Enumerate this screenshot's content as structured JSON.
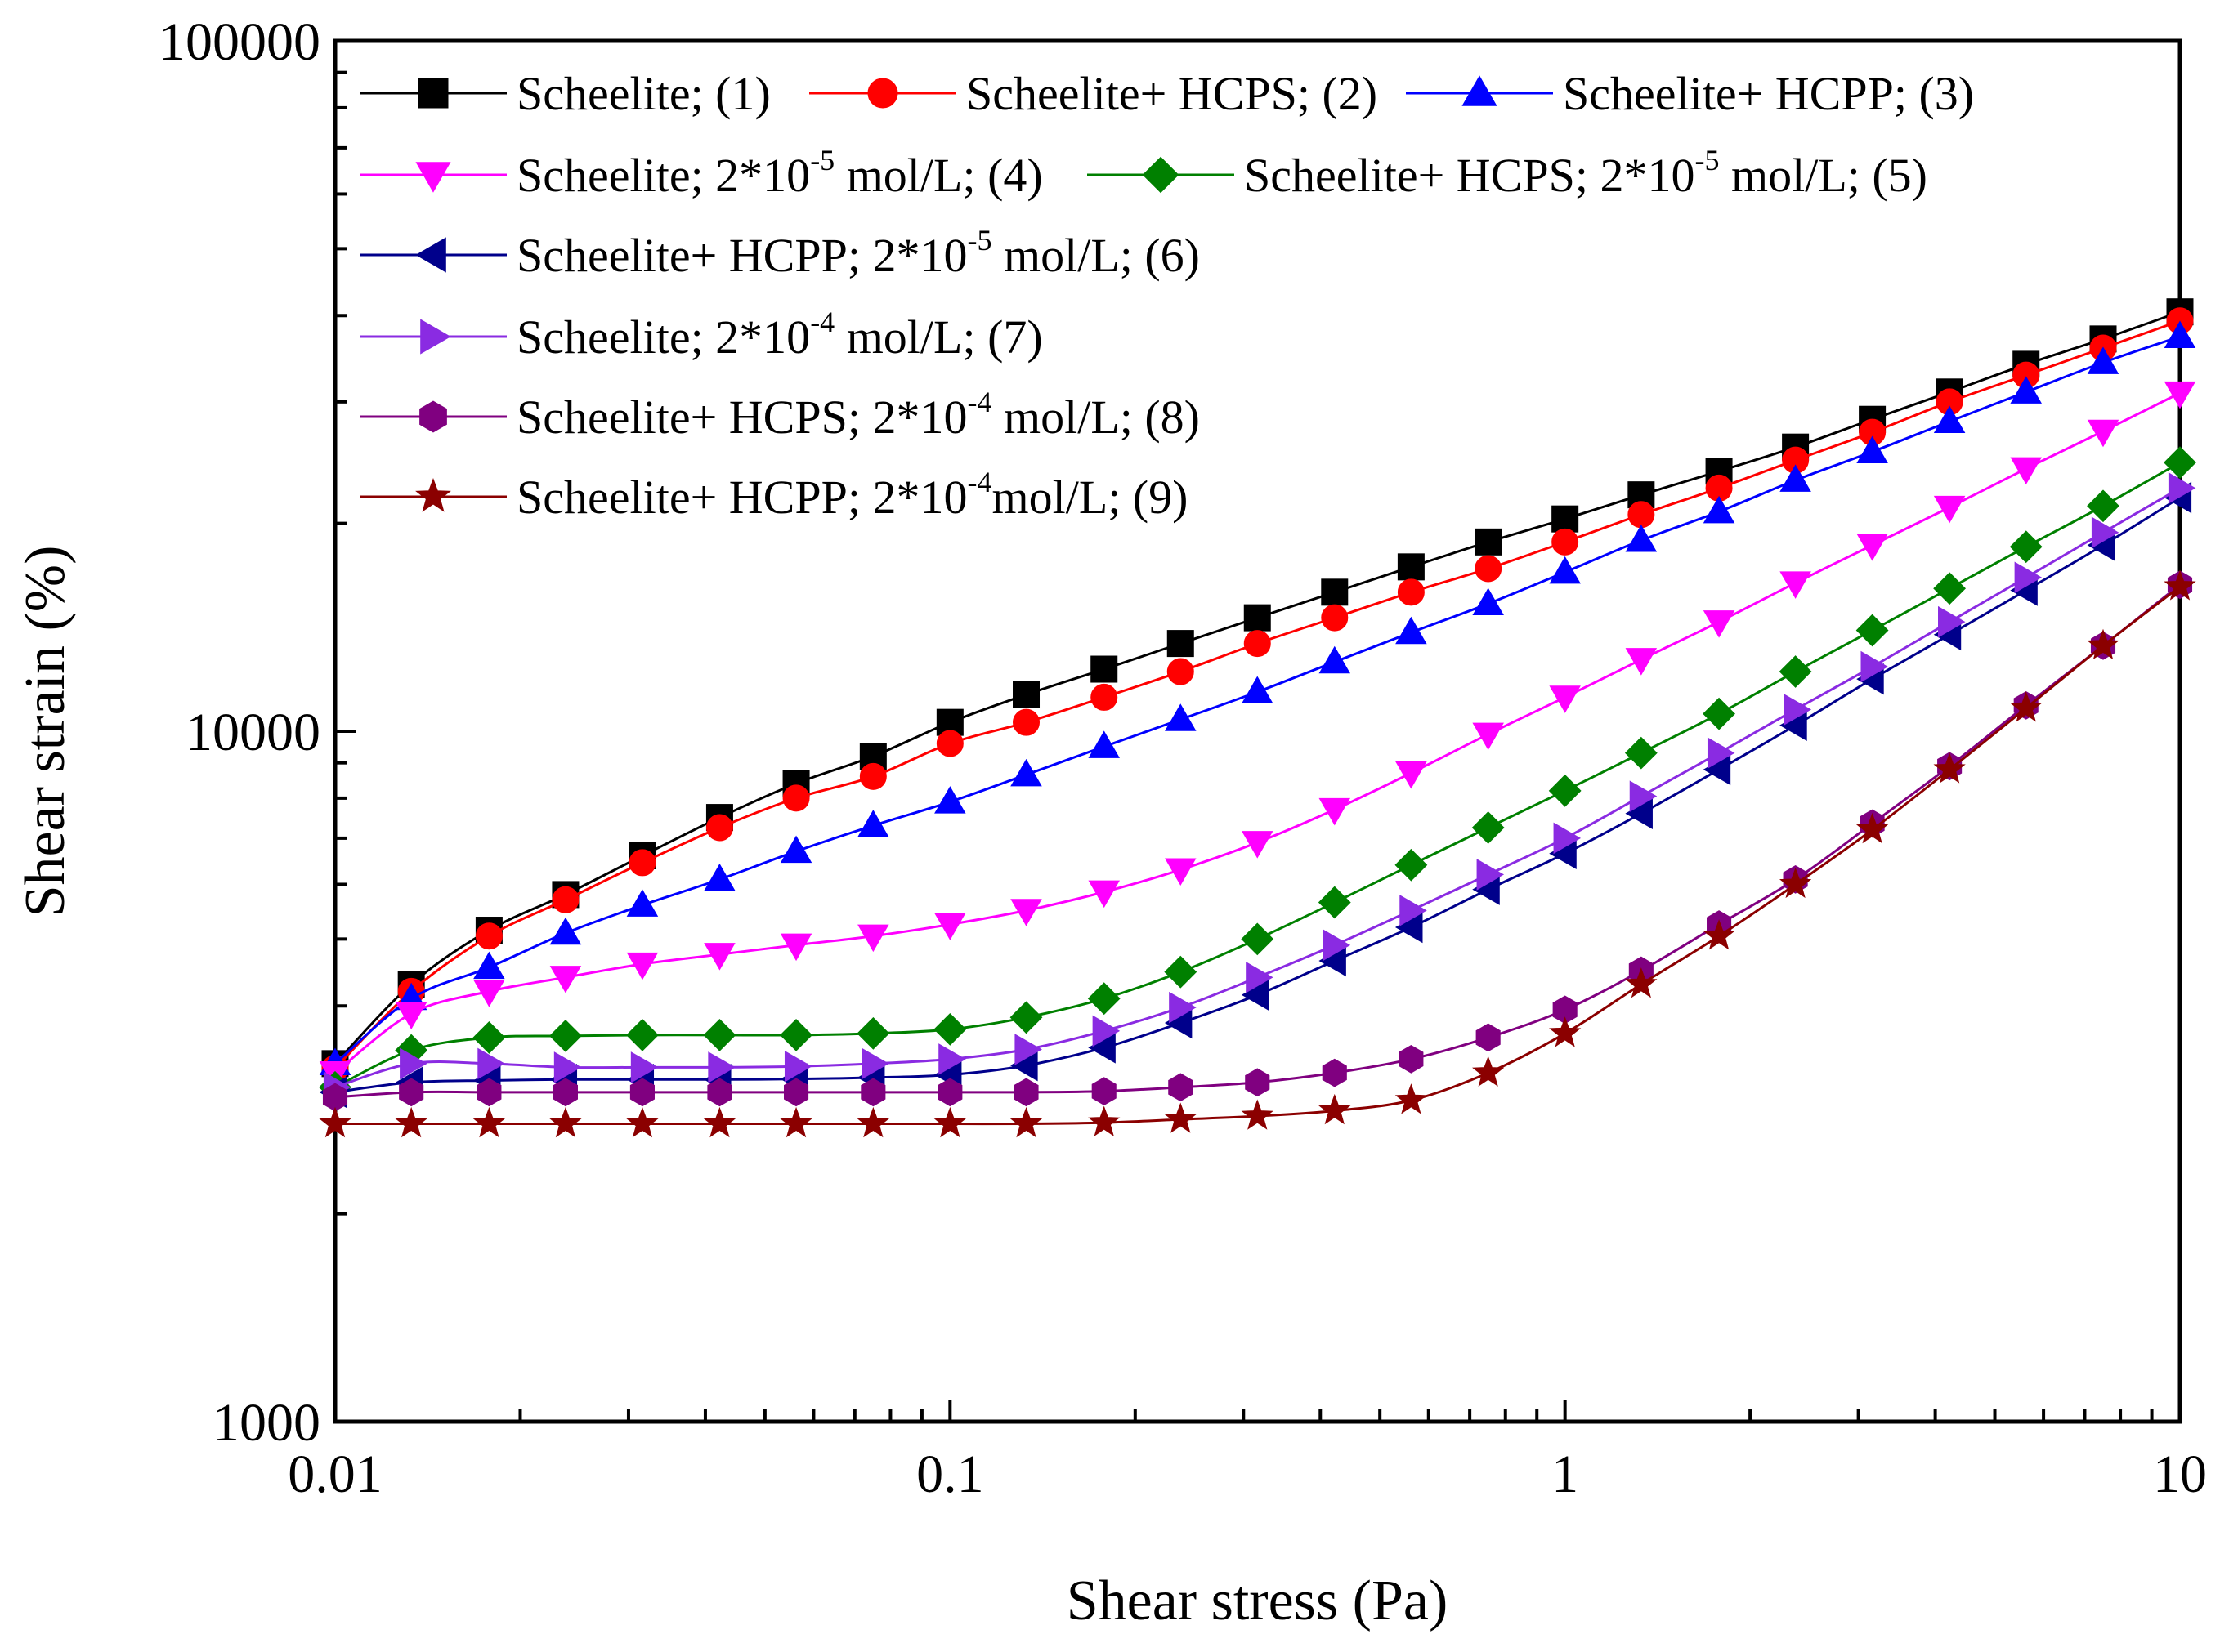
{
  "chart_data": {
    "type": "line",
    "xscale": "log",
    "yscale": "log",
    "xlabel": "Shear stress (Pa)",
    "ylabel": "Shear strain  (%)",
    "xlim": [
      0.01,
      10
    ],
    "ylim": [
      1000,
      100000
    ],
    "xticks": [
      "0.01",
      "0.1",
      "1",
      "10"
    ],
    "yticks": [
      "1000",
      "10000",
      "100000"
    ],
    "x": [
      0.01,
      0.0133,
      0.0178,
      0.0237,
      0.0316,
      0.0422,
      0.0562,
      0.075,
      0.1,
      0.133,
      0.178,
      0.237,
      0.316,
      0.422,
      0.562,
      0.75,
      1.0,
      1.33,
      1.78,
      2.37,
      3.16,
      4.22,
      5.62,
      7.5,
      10.0
    ],
    "series": [
      {
        "name": "Scheelite",
        "label_pre": "Scheelite; (1)",
        "label_sup": "",
        "label_post": "",
        "color": "#000000",
        "marker": "square",
        "values": [
          3300,
          4300,
          5150,
          5800,
          6600,
          7500,
          8400,
          9200,
          10300,
          11300,
          12300,
          13400,
          14600,
          15900,
          17300,
          18800,
          20300,
          22000,
          23800,
          25800,
          28300,
          31000,
          34000,
          37000,
          40500
        ]
      },
      {
        "name": "Scheelite+ HCPS",
        "label_pre": "Scheelite+ HCPS; (2)",
        "label_sup": "",
        "label_post": "",
        "color": "#ff0000",
        "marker": "circle",
        "values": [
          3250,
          4200,
          5050,
          5700,
          6450,
          7250,
          8000,
          8600,
          9600,
          10300,
          11200,
          12200,
          13400,
          14600,
          15900,
          17200,
          18800,
          20600,
          22500,
          24700,
          27100,
          30000,
          32800,
          35900,
          39300
        ]
      },
      {
        "name": "Scheelite+ HCPP",
        "label_pre": "Scheelite+ HCPP; (3)",
        "label_sup": "",
        "label_post": "",
        "color": "#0000ff",
        "marker": "triangle-up",
        "values": [
          3300,
          4100,
          4550,
          5100,
          5600,
          6100,
          6700,
          7300,
          7900,
          8650,
          9500,
          10400,
          11400,
          12600,
          13900,
          15300,
          17000,
          18900,
          20800,
          23100,
          25400,
          28100,
          31000,
          34200,
          37300
        ]
      },
      {
        "name": "Scheelite; 2*10-5 mol/L",
        "label_pre": "Scheelite; 2*10",
        "label_sup": "-5",
        "label_post": " mol/L; (4)",
        "color": "#ff00ff",
        "marker": "triangle-down",
        "values": [
          3200,
          3900,
          4200,
          4400,
          4600,
          4750,
          4900,
          5050,
          5250,
          5500,
          5850,
          6300,
          6900,
          7700,
          8700,
          9900,
          11200,
          12700,
          14400,
          16400,
          18600,
          21100,
          24000,
          27200,
          30900
        ]
      },
      {
        "name": "Scheelite+ HCPS; 2*10-5 mol/L",
        "label_pre": "Scheelite+ HCPS; 2*10",
        "label_sup": "-5",
        "label_post": " mol/L; (5)",
        "color": "#008000",
        "marker": "diamond",
        "values": [
          3050,
          3450,
          3600,
          3620,
          3630,
          3630,
          3630,
          3650,
          3700,
          3850,
          4100,
          4480,
          5000,
          5650,
          6400,
          7250,
          8200,
          9300,
          10600,
          12200,
          14000,
          16100,
          18500,
          21200,
          24500
        ]
      },
      {
        "name": "Scheelite+ HCPP; 2*10-5 mol/L",
        "label_pre": "Scheelite+ HCPP; 2*10",
        "label_sup": "-5",
        "label_post": " mol/L; (6)",
        "color": "#00008b",
        "marker": "triangle-left",
        "values": [
          3000,
          3100,
          3120,
          3130,
          3130,
          3130,
          3135,
          3150,
          3180,
          3280,
          3480,
          3780,
          4150,
          4650,
          5200,
          5900,
          6650,
          7600,
          8800,
          10200,
          11900,
          13800,
          16000,
          18600,
          21800
        ]
      },
      {
        "name": "Scheelite; 2*10-4 mol/L",
        "label_pre": "Scheelite; 2*10",
        "label_sup": "-4",
        "label_post": " mol/L; (7)",
        "color": "#8a2be2",
        "marker": "triangle-right",
        "values": [
          3050,
          3300,
          3300,
          3260,
          3260,
          3260,
          3270,
          3300,
          3350,
          3460,
          3680,
          3980,
          4400,
          4900,
          5500,
          6200,
          7000,
          8050,
          9300,
          10750,
          12400,
          14400,
          16700,
          19400,
          22500
        ]
      },
      {
        "name": "Scheelite+ HCPS; 2*10-4 mol/L",
        "label_pre": "Scheelite+ HCPS; 2*10",
        "label_sup": "-4",
        "label_post": " mol/L; (8)",
        "color": "#800080",
        "marker": "hexagon",
        "values": [
          2950,
          3000,
          3000,
          3000,
          3000,
          3000,
          3000,
          3000,
          3000,
          3000,
          3010,
          3050,
          3100,
          3200,
          3350,
          3600,
          3950,
          4500,
          5250,
          6100,
          7350,
          8900,
          10900,
          13300,
          16300
        ]
      },
      {
        "name": "Scheelite+ HCPP; 2*10-4mol/L",
        "label_pre": "Scheelite+ HCPP; 2*10",
        "label_sup": "-4",
        "label_post": "mol/L; (9)",
        "color": "#8b0000",
        "marker": "star",
        "values": [
          2700,
          2700,
          2700,
          2700,
          2700,
          2700,
          2700,
          2700,
          2700,
          2700,
          2710,
          2740,
          2770,
          2820,
          2920,
          3200,
          3650,
          4300,
          5050,
          6000,
          7200,
          8800,
          10800,
          13300,
          16200
        ]
      }
    ]
  }
}
